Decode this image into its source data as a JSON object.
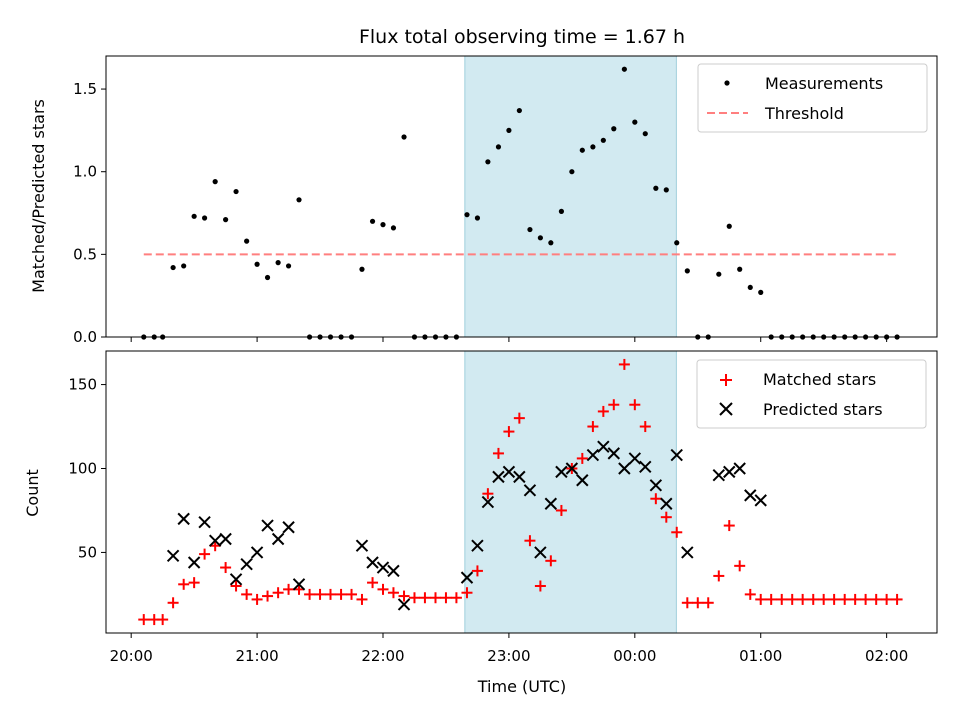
{
  "chart_data": {
    "type": "scatter",
    "title": "Flux total observing time = 1.67 h",
    "xlabel": "Time (UTC)",
    "x_ticks": [
      "20:00",
      "21:00",
      "22:00",
      "23:00",
      "00:00",
      "01:00",
      "02:00"
    ],
    "x_range_hours": [
      19.8,
      26.4
    ],
    "highlight_span_hours": [
      22.65,
      24.33
    ],
    "colors": {
      "measurements": "#000000",
      "threshold": "#ff7f7f",
      "matched": "#ff0000",
      "predicted": "#000000",
      "highlight": "#add8e6"
    },
    "times": [
      "20:05",
      "20:10",
      "20:15",
      "20:20",
      "20:25",
      "20:30",
      "20:35",
      "20:40",
      "20:45",
      "20:50",
      "20:55",
      "21:00",
      "21:05",
      "21:10",
      "21:15",
      "21:20",
      "21:25",
      "21:30",
      "21:35",
      "21:40",
      "21:45",
      "21:50",
      "21:55",
      "22:00",
      "22:05",
      "22:10",
      "22:15",
      "22:20",
      "22:25",
      "22:30",
      "22:35",
      "22:40",
      "22:45",
      "22:50",
      "22:55",
      "23:00",
      "23:05",
      "23:10",
      "23:15",
      "23:20",
      "23:25",
      "23:30",
      "23:35",
      "23:40",
      "23:45",
      "23:50",
      "23:55",
      "00:00",
      "00:05",
      "00:10",
      "00:15",
      "00:20",
      "00:25",
      "00:30",
      "00:35",
      "00:40",
      "00:45",
      "00:50",
      "00:55",
      "01:00",
      "01:05",
      "01:10",
      "01:15",
      "01:20",
      "01:25",
      "01:30",
      "01:35",
      "01:40",
      "01:45",
      "01:50",
      "01:55",
      "02:00",
      "02:05"
    ],
    "top": {
      "ylabel": "Matched/Predicted stars",
      "ylim": [
        0,
        1.7
      ],
      "y_ticks": [
        0.0,
        0.5,
        1.0,
        1.5
      ],
      "y_tick_labels": [
        "0.0",
        "0.5",
        "1.0",
        "1.5"
      ],
      "threshold": 0.5,
      "threshold_range_hours": [
        20.1,
        26.1
      ],
      "legend": [
        "Measurements",
        "Threshold"
      ],
      "measurements": [
        {
          "x": 20.1,
          "y": 0
        },
        {
          "x": 20.183,
          "y": 0
        },
        {
          "x": 20.25,
          "y": 0
        },
        {
          "x": 20.333,
          "y": 0.42
        },
        {
          "x": 20.417,
          "y": 0.43
        },
        {
          "x": 20.5,
          "y": 0.73
        },
        {
          "x": 20.583,
          "y": 0.72
        },
        {
          "x": 20.667,
          "y": 0.94
        },
        {
          "x": 20.75,
          "y": 0.71
        },
        {
          "x": 20.833,
          "y": 0.88
        },
        {
          "x": 20.917,
          "y": 0.58
        },
        {
          "x": 21.0,
          "y": 0.44
        },
        {
          "x": 21.083,
          "y": 0.36
        },
        {
          "x": 21.167,
          "y": 0.45
        },
        {
          "x": 21.25,
          "y": 0.43
        },
        {
          "x": 21.333,
          "y": 0.83
        },
        {
          "x": 21.417,
          "y": 0
        },
        {
          "x": 21.5,
          "y": 0
        },
        {
          "x": 21.583,
          "y": 0
        },
        {
          "x": 21.667,
          "y": 0
        },
        {
          "x": 21.75,
          "y": 0
        },
        {
          "x": 21.833,
          "y": 0.41
        },
        {
          "x": 21.917,
          "y": 0.7
        },
        {
          "x": 22.0,
          "y": 0.68
        },
        {
          "x": 22.083,
          "y": 0.66
        },
        {
          "x": 22.167,
          "y": 1.21
        },
        {
          "x": 22.25,
          "y": 0
        },
        {
          "x": 22.333,
          "y": 0
        },
        {
          "x": 22.417,
          "y": 0
        },
        {
          "x": 22.5,
          "y": 0
        },
        {
          "x": 22.583,
          "y": 0
        },
        {
          "x": 22.667,
          "y": 0.74
        },
        {
          "x": 22.75,
          "y": 0.72
        },
        {
          "x": 22.833,
          "y": 1.06
        },
        {
          "x": 22.917,
          "y": 1.15
        },
        {
          "x": 23.0,
          "y": 1.25
        },
        {
          "x": 23.083,
          "y": 1.37
        },
        {
          "x": 23.167,
          "y": 0.65
        },
        {
          "x": 23.25,
          "y": 0.6
        },
        {
          "x": 23.333,
          "y": 0.57
        },
        {
          "x": 23.417,
          "y": 0.76
        },
        {
          "x": 23.5,
          "y": 1.0
        },
        {
          "x": 23.583,
          "y": 1.13
        },
        {
          "x": 23.667,
          "y": 1.15
        },
        {
          "x": 23.75,
          "y": 1.19
        },
        {
          "x": 23.833,
          "y": 1.26
        },
        {
          "x": 23.917,
          "y": 1.62
        },
        {
          "x": 24.0,
          "y": 1.3
        },
        {
          "x": 24.083,
          "y": 1.23
        },
        {
          "x": 24.167,
          "y": 0.9
        },
        {
          "x": 24.25,
          "y": 0.89
        },
        {
          "x": 24.333,
          "y": 0.57
        },
        {
          "x": 24.417,
          "y": 0.4
        },
        {
          "x": 24.5,
          "y": 0
        },
        {
          "x": 24.583,
          "y": 0
        },
        {
          "x": 24.667,
          "y": 0.38
        },
        {
          "x": 24.75,
          "y": 0.67
        },
        {
          "x": 24.833,
          "y": 0.41
        },
        {
          "x": 24.917,
          "y": 0.3
        },
        {
          "x": 25.0,
          "y": 0.27
        },
        {
          "x": 25.083,
          "y": 0
        },
        {
          "x": 25.167,
          "y": 0
        },
        {
          "x": 25.25,
          "y": 0
        },
        {
          "x": 25.333,
          "y": 0
        },
        {
          "x": 25.417,
          "y": 0
        },
        {
          "x": 25.5,
          "y": 0
        },
        {
          "x": 25.583,
          "y": 0
        },
        {
          "x": 25.667,
          "y": 0
        },
        {
          "x": 25.75,
          "y": 0
        },
        {
          "x": 25.833,
          "y": 0
        },
        {
          "x": 25.917,
          "y": 0
        },
        {
          "x": 26.0,
          "y": 0
        },
        {
          "x": 26.083,
          "y": 0
        }
      ]
    },
    "bottom": {
      "ylabel": "Count",
      "ylim": [
        2,
        170
      ],
      "y_ticks": [
        50,
        100,
        150
      ],
      "y_tick_labels": [
        "50",
        "100",
        "150"
      ],
      "legend": [
        "Matched stars",
        "Predicted stars"
      ],
      "matched": [
        {
          "x": 20.1,
          "y": 10
        },
        {
          "x": 20.183,
          "y": 10
        },
        {
          "x": 20.25,
          "y": 10
        },
        {
          "x": 20.333,
          "y": 20
        },
        {
          "x": 20.417,
          "y": 31
        },
        {
          "x": 20.5,
          "y": 32
        },
        {
          "x": 20.583,
          "y": 49
        },
        {
          "x": 20.667,
          "y": 54
        },
        {
          "x": 20.75,
          "y": 41
        },
        {
          "x": 20.833,
          "y": 30
        },
        {
          "x": 20.917,
          "y": 25
        },
        {
          "x": 21.0,
          "y": 22
        },
        {
          "x": 21.083,
          "y": 24
        },
        {
          "x": 21.167,
          "y": 26
        },
        {
          "x": 21.25,
          "y": 28
        },
        {
          "x": 21.333,
          "y": 28
        },
        {
          "x": 21.417,
          "y": 25
        },
        {
          "x": 21.5,
          "y": 25
        },
        {
          "x": 21.583,
          "y": 25
        },
        {
          "x": 21.667,
          "y": 25
        },
        {
          "x": 21.75,
          "y": 25
        },
        {
          "x": 21.833,
          "y": 22
        },
        {
          "x": 21.917,
          "y": 32
        },
        {
          "x": 22.0,
          "y": 28
        },
        {
          "x": 22.083,
          "y": 26
        },
        {
          "x": 22.167,
          "y": 24
        },
        {
          "x": 22.25,
          "y": 23
        },
        {
          "x": 22.333,
          "y": 23
        },
        {
          "x": 22.417,
          "y": 23
        },
        {
          "x": 22.5,
          "y": 23
        },
        {
          "x": 22.583,
          "y": 23
        },
        {
          "x": 22.667,
          "y": 26
        },
        {
          "x": 22.75,
          "y": 39
        },
        {
          "x": 22.833,
          "y": 85
        },
        {
          "x": 22.917,
          "y": 109
        },
        {
          "x": 23.0,
          "y": 122
        },
        {
          "x": 23.083,
          "y": 130
        },
        {
          "x": 23.167,
          "y": 57
        },
        {
          "x": 23.25,
          "y": 30
        },
        {
          "x": 23.333,
          "y": 45
        },
        {
          "x": 23.417,
          "y": 75
        },
        {
          "x": 23.5,
          "y": 100
        },
        {
          "x": 23.583,
          "y": 106
        },
        {
          "x": 23.667,
          "y": 125
        },
        {
          "x": 23.75,
          "y": 134
        },
        {
          "x": 23.833,
          "y": 138
        },
        {
          "x": 23.917,
          "y": 162
        },
        {
          "x": 24.0,
          "y": 138
        },
        {
          "x": 24.083,
          "y": 125
        },
        {
          "x": 24.167,
          "y": 82
        },
        {
          "x": 24.25,
          "y": 71
        },
        {
          "x": 24.333,
          "y": 62
        },
        {
          "x": 24.417,
          "y": 20
        },
        {
          "x": 24.5,
          "y": 20
        },
        {
          "x": 24.583,
          "y": 20
        },
        {
          "x": 24.667,
          "y": 36
        },
        {
          "x": 24.75,
          "y": 66
        },
        {
          "x": 24.833,
          "y": 42
        },
        {
          "x": 24.917,
          "y": 25
        },
        {
          "x": 25.0,
          "y": 22
        },
        {
          "x": 25.083,
          "y": 22
        },
        {
          "x": 25.167,
          "y": 22
        },
        {
          "x": 25.25,
          "y": 22
        },
        {
          "x": 25.333,
          "y": 22
        },
        {
          "x": 25.417,
          "y": 22
        },
        {
          "x": 25.5,
          "y": 22
        },
        {
          "x": 25.583,
          "y": 22
        },
        {
          "x": 25.667,
          "y": 22
        },
        {
          "x": 25.75,
          "y": 22
        },
        {
          "x": 25.833,
          "y": 22
        },
        {
          "x": 25.917,
          "y": 22
        },
        {
          "x": 26.0,
          "y": 22
        },
        {
          "x": 26.083,
          "y": 22
        }
      ],
      "predicted": [
        {
          "x": 20.333,
          "y": 48
        },
        {
          "x": 20.417,
          "y": 70
        },
        {
          "x": 20.5,
          "y": 44
        },
        {
          "x": 20.583,
          "y": 68
        },
        {
          "x": 20.667,
          "y": 57
        },
        {
          "x": 20.75,
          "y": 58
        },
        {
          "x": 20.833,
          "y": 34
        },
        {
          "x": 20.917,
          "y": 43
        },
        {
          "x": 21.0,
          "y": 50
        },
        {
          "x": 21.083,
          "y": 66
        },
        {
          "x": 21.167,
          "y": 58
        },
        {
          "x": 21.25,
          "y": 65
        },
        {
          "x": 21.333,
          "y": 31
        },
        {
          "x": 21.833,
          "y": 54
        },
        {
          "x": 21.917,
          "y": 44
        },
        {
          "x": 22.0,
          "y": 41
        },
        {
          "x": 22.083,
          "y": 39
        },
        {
          "x": 22.167,
          "y": 19
        },
        {
          "x": 22.667,
          "y": 35
        },
        {
          "x": 22.75,
          "y": 54
        },
        {
          "x": 22.833,
          "y": 80
        },
        {
          "x": 22.917,
          "y": 95
        },
        {
          "x": 23.0,
          "y": 98
        },
        {
          "x": 23.083,
          "y": 95
        },
        {
          "x": 23.167,
          "y": 87
        },
        {
          "x": 23.25,
          "y": 50
        },
        {
          "x": 23.333,
          "y": 79
        },
        {
          "x": 23.417,
          "y": 98
        },
        {
          "x": 23.5,
          "y": 100
        },
        {
          "x": 23.583,
          "y": 93
        },
        {
          "x": 23.667,
          "y": 108
        },
        {
          "x": 23.75,
          "y": 113
        },
        {
          "x": 23.833,
          "y": 109
        },
        {
          "x": 23.917,
          "y": 100
        },
        {
          "x": 24.0,
          "y": 106
        },
        {
          "x": 24.083,
          "y": 101
        },
        {
          "x": 24.167,
          "y": 90
        },
        {
          "x": 24.25,
          "y": 79
        },
        {
          "x": 24.333,
          "y": 108
        },
        {
          "x": 24.417,
          "y": 50
        },
        {
          "x": 24.667,
          "y": 96
        },
        {
          "x": 24.75,
          "y": 98
        },
        {
          "x": 24.833,
          "y": 100
        },
        {
          "x": 24.917,
          "y": 84
        },
        {
          "x": 25.0,
          "y": 81
        }
      ]
    }
  }
}
